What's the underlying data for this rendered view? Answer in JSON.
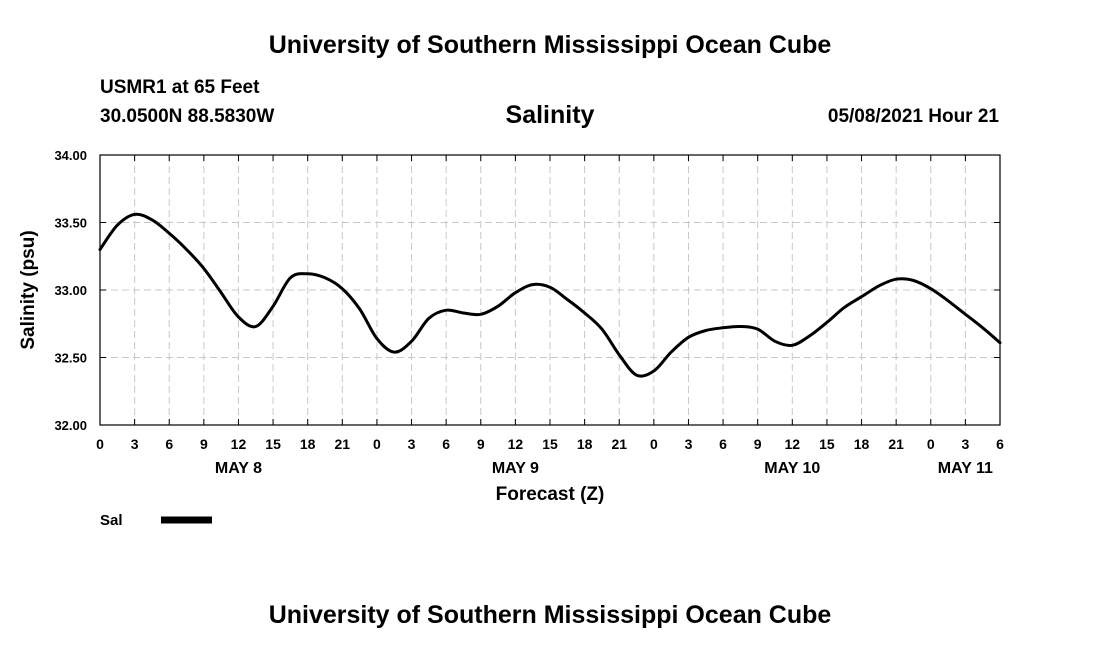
{
  "header": {
    "title_top": "University of Southern Mississippi Ocean Cube",
    "station": "USMR1 at 65 Feet",
    "coords": "30.0500N  88.5830W",
    "plot_title": "Salinity",
    "timestamp": "05/08/2021 Hour 21",
    "title_bottom": "University of Southern Mississippi Ocean Cube"
  },
  "chart_data": {
    "type": "line",
    "title": "Salinity",
    "xlabel": "Forecast (Z)",
    "ylabel": "Salinity (psu)",
    "xlim": [
      0,
      78
    ],
    "ylim": [
      32.0,
      34.0
    ],
    "grid": true,
    "y_ticks": [
      32.0,
      32.5,
      33.0,
      33.5,
      34.0
    ],
    "y_tick_labels": [
      "32.00",
      "32.50",
      "33.00",
      "33.50",
      "34.00"
    ],
    "x_tick_labels": [
      "0",
      "3",
      "6",
      "9",
      "12",
      "15",
      "18",
      "21",
      "0",
      "3",
      "6",
      "9",
      "12",
      "15",
      "18",
      "21",
      "0",
      "3",
      "6",
      "9",
      "12",
      "15",
      "18",
      "21",
      "0",
      "3",
      "6"
    ],
    "date_labels": [
      {
        "label": "MAY 8",
        "hour": 12
      },
      {
        "label": "MAY 9",
        "hour": 36
      },
      {
        "label": "MAY 10",
        "hour": 60
      },
      {
        "label": "MAY 11",
        "hour": 75
      }
    ],
    "series": [
      {
        "name": "Sal",
        "color": "#000000",
        "x": [
          0,
          1.5,
          3,
          4.5,
          6,
          7.5,
          9,
          10.5,
          12,
          13.5,
          15,
          16.5,
          18,
          19.5,
          21,
          22.5,
          24,
          25.5,
          27,
          28.5,
          30,
          31.5,
          33,
          34.5,
          36,
          37.5,
          39,
          40.5,
          42,
          43.5,
          45,
          46.5,
          48,
          49.5,
          51,
          52.5,
          54,
          55.5,
          57,
          58.5,
          60,
          61.5,
          63,
          64.5,
          66,
          67.5,
          69,
          70.5,
          72,
          73.5,
          75,
          76.5,
          78
        ],
        "values": [
          33.3,
          33.48,
          33.56,
          33.52,
          33.42,
          33.3,
          33.16,
          32.98,
          32.8,
          32.73,
          32.88,
          33.09,
          33.12,
          33.09,
          33.01,
          32.86,
          32.64,
          32.54,
          32.62,
          32.79,
          32.85,
          32.83,
          32.82,
          32.88,
          32.98,
          33.04,
          33.02,
          32.93,
          32.83,
          32.71,
          32.52,
          32.37,
          32.4,
          32.54,
          32.65,
          32.7,
          32.72,
          32.73,
          32.71,
          32.62,
          32.59,
          32.66,
          32.76,
          32.87,
          32.95,
          33.03,
          33.08,
          33.07,
          33.01,
          32.92,
          32.82,
          32.72,
          32.61
        ]
      }
    ],
    "legend": {
      "label": "Sal",
      "position": "bottom-left"
    }
  }
}
